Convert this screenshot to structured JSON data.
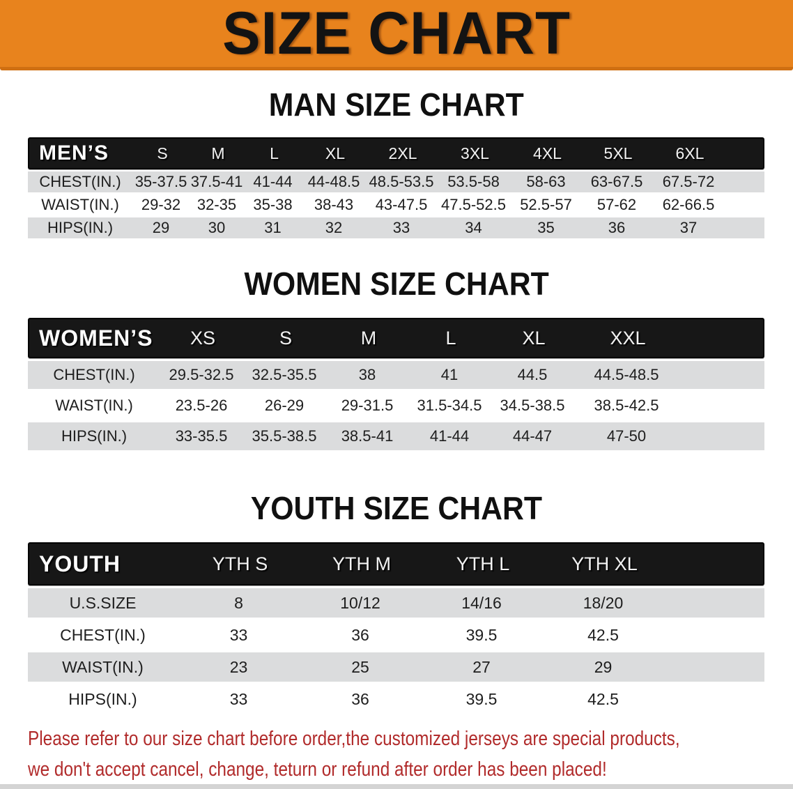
{
  "banner": {
    "title": "SIZE CHART"
  },
  "colors": {
    "banner_bg": "#E8831D",
    "header_bar": "#171717",
    "row_shade": "#DBDCDD",
    "footer_text": "#B12B2B"
  },
  "footer": {
    "line1": "Please refer to our size chart before order,the customized jerseys are special products,",
    "line2": "we don't accept cancel, change, teturn or refund after order has been placed!"
  },
  "chart_data": [
    {
      "type": "table",
      "title": "MAN SIZE CHART",
      "corner_label": "MEN’S",
      "columns": [
        "S",
        "M",
        "L",
        "XL",
        "2XL",
        "3XL",
        "4XL",
        "5XL",
        "6XL"
      ],
      "rows": [
        {
          "label": "CHEST(IN.)",
          "values": [
            "35-37.5",
            "37.5-41",
            "41-44",
            "44-48.5",
            "48.5-53.5",
            "53.5-58",
            "58-63",
            "63-67.5",
            "67.5-72"
          ]
        },
        {
          "label": "WAIST(IN.)",
          "values": [
            "29-32",
            "32-35",
            "35-38",
            "38-43",
            "43-47.5",
            "47.5-52.5",
            "52.5-57",
            "57-62",
            "62-66.5"
          ]
        },
        {
          "label": "HIPS(IN.)",
          "values": [
            "29",
            "30",
            "31",
            "32",
            "33",
            "34",
            "35",
            "36",
            "37"
          ]
        }
      ]
    },
    {
      "type": "table",
      "title": "WOMEN SIZE CHART",
      "corner_label": "WOMEN’S",
      "columns": [
        "XS",
        "S",
        "M",
        "L",
        "XL",
        "XXL"
      ],
      "rows": [
        {
          "label": "CHEST(IN.)",
          "values": [
            "29.5-32.5",
            "32.5-35.5",
            "38",
            "41",
            "44.5",
            "44.5-48.5"
          ]
        },
        {
          "label": "WAIST(IN.)",
          "values": [
            "23.5-26",
            "26-29",
            "29-31.5",
            "31.5-34.5",
            "34.5-38.5",
            "38.5-42.5"
          ]
        },
        {
          "label": "HIPS(IN.)",
          "values": [
            "33-35.5",
            "35.5-38.5",
            "38.5-41",
            "41-44",
            "44-47",
            "47-50"
          ]
        }
      ]
    },
    {
      "type": "table",
      "title": "YOUTH SIZE CHART",
      "corner_label": "YOUTH",
      "columns": [
        "YTH S",
        "YTH M",
        "YTH L",
        "YTH XL"
      ],
      "rows": [
        {
          "label": "U.S.SIZE",
          "values": [
            "8",
            "10/12",
            "14/16",
            "18/20"
          ]
        },
        {
          "label": "CHEST(IN.)",
          "values": [
            "33",
            "36",
            "39.5",
            "42.5"
          ]
        },
        {
          "label": "WAIST(IN.)",
          "values": [
            "23",
            "25",
            "27",
            "29"
          ]
        },
        {
          "label": "HIPS(IN.)",
          "values": [
            "33",
            "36",
            "39.5",
            "42.5"
          ]
        }
      ]
    }
  ]
}
